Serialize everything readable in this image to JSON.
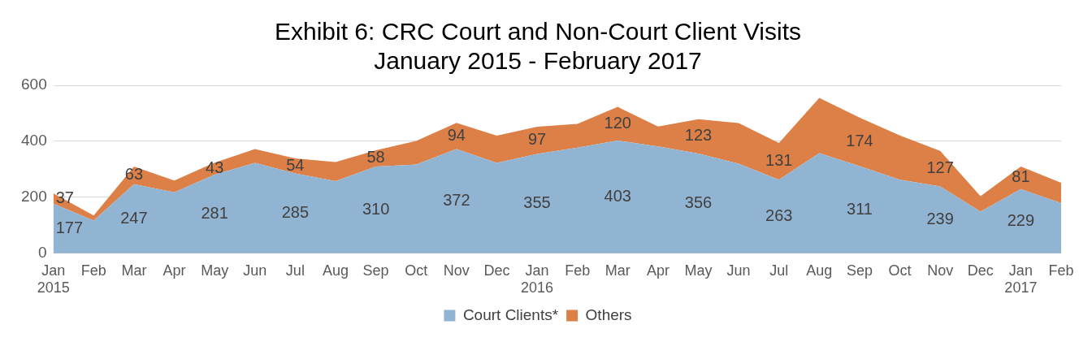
{
  "chart_data": {
    "type": "area",
    "title": "Exhibit 6: CRC Court and Non-Court Client Visits\nJanuary 2015 - February 2017",
    "stacked": true,
    "categories": [
      "Jan\n2015",
      "Feb",
      "Mar",
      "Apr",
      "May",
      "Jun",
      "Jul",
      "Aug",
      "Sep",
      "Oct",
      "Nov",
      "Dec",
      "Jan\n2016",
      "Feb",
      "Mar",
      "Apr",
      "May",
      "Jun",
      "Jul",
      "Aug",
      "Sep",
      "Oct",
      "Nov",
      "Dec",
      "Jan\n2017",
      "Feb"
    ],
    "series": [
      {
        "name": "Court Clients*",
        "color": "#92b4d3",
        "values": [
          177,
          117,
          247,
          218,
          281,
          323,
          285,
          258,
          310,
          317,
          372,
          323,
          355,
          377,
          403,
          382,
          356,
          320,
          263,
          358,
          311,
          263,
          239,
          149,
          229,
          179
        ],
        "value_labels": [
          "177",
          null,
          "247",
          null,
          "281",
          null,
          "285",
          null,
          "310",
          null,
          "372",
          null,
          "355",
          null,
          "403",
          null,
          "356",
          null,
          "263",
          null,
          "311",
          null,
          "239",
          null,
          "229",
          null
        ]
      },
      {
        "name": "Others",
        "color": "#dd8047",
        "values": [
          37,
          18,
          63,
          42,
          43,
          49,
          54,
          68,
          58,
          84,
          94,
          97,
          97,
          85,
          120,
          71,
          123,
          145,
          131,
          197,
          174,
          158,
          127,
          55,
          81,
          73
        ],
        "value_labels": [
          "37",
          null,
          "63",
          null,
          "43",
          null,
          "54",
          null,
          "58",
          null,
          "94",
          null,
          "97",
          null,
          "120",
          null,
          "123",
          null,
          "131",
          null,
          "174",
          null,
          "127",
          null,
          "81",
          null
        ]
      }
    ],
    "ylim": [
      0,
      600
    ],
    "yticks": [
      0,
      200,
      400,
      600
    ],
    "grid": "y",
    "legend": "bottom"
  }
}
